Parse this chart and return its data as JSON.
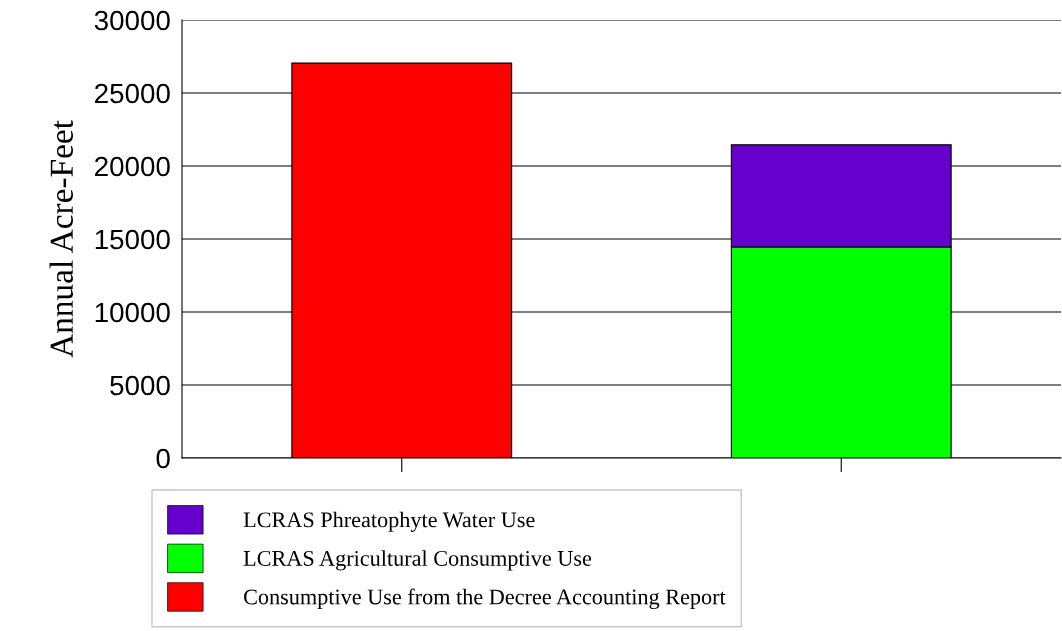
{
  "chart_data": {
    "type": "bar",
    "ylabel": "Annual Acre-Feet",
    "categories": [
      null,
      null
    ],
    "stacked": true,
    "series": [
      {
        "name": "Consumptive Use from the Decree Accounting Report",
        "color": "#ff0000",
        "values": [
          27050,
          null
        ]
      },
      {
        "name": "LCRAS Agricultural Consumptive Use",
        "color": "#00ff00",
        "values": [
          null,
          14450
        ]
      },
      {
        "name": "LCRAS Phreatophyte Water Use",
        "color": "#6600cc",
        "values": [
          null,
          7000
        ]
      }
    ],
    "ylim": [
      0,
      30000
    ],
    "yticks": [
      0,
      5000,
      10000,
      15000,
      20000,
      25000,
      30000
    ],
    "grid": "y",
    "legend": "bottom"
  }
}
